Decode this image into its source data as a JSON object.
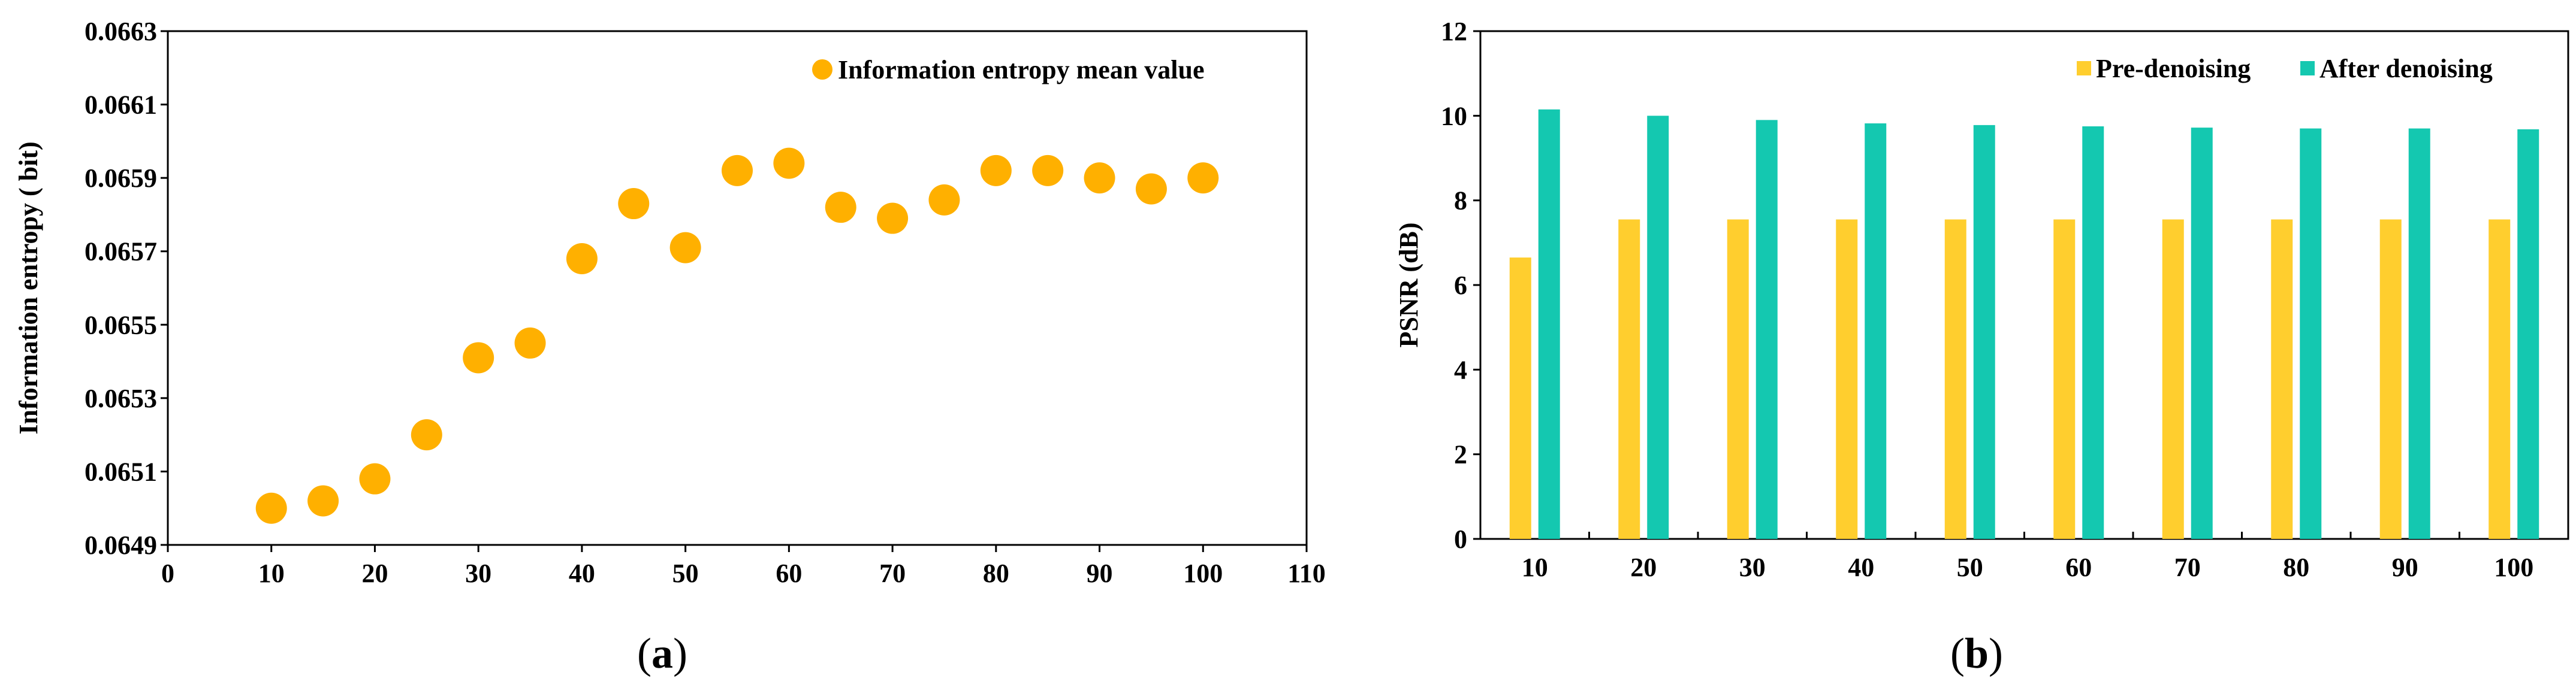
{
  "chart_data": [
    {
      "type": "scatter",
      "caption_label": "a",
      "title": "",
      "xlabel": "",
      "ylabel": "Information entropy ( bit)",
      "xlim": [
        0,
        110
      ],
      "ylim": [
        0.0649,
        0.0663
      ],
      "xticks": [
        "0",
        "10",
        "20",
        "30",
        "40",
        "50",
        "60",
        "70",
        "80",
        "90",
        "100",
        "110"
      ],
      "yticks": [
        "0.0649",
        "0.0651",
        "0.0653",
        "0.0655",
        "0.0657",
        "0.0659",
        "0.0661",
        "0.0663"
      ],
      "legend": "top-right",
      "color": "#FFB000",
      "series": [
        {
          "name": "Information entropy mean value",
          "x": [
            10,
            15,
            20,
            25,
            30,
            35,
            40,
            45,
            50,
            55,
            60,
            65,
            70,
            75,
            80,
            85,
            90,
            95,
            100
          ],
          "y": [
            0.065,
            0.06502,
            0.06508,
            0.0652,
            0.06541,
            0.06545,
            0.06568,
            0.06583,
            0.06571,
            0.06592,
            0.06594,
            0.06582,
            0.06579,
            0.06584,
            0.06592,
            0.06592,
            0.0659,
            0.06587,
            0.0659
          ]
        }
      ]
    },
    {
      "type": "bar",
      "caption_label": "b",
      "title": "",
      "xlabel": "",
      "ylabel": "PSNR (dB)",
      "ylim": [
        0,
        12
      ],
      "yticks": [
        "0",
        "2",
        "4",
        "6",
        "8",
        "10",
        "12"
      ],
      "categories": [
        "10",
        "20",
        "30",
        "40",
        "50",
        "60",
        "70",
        "80",
        "90",
        "100"
      ],
      "legend": "top-right",
      "series": [
        {
          "name": "Pre-denoising",
          "color": "#FFCE2E",
          "values": [
            6.65,
            7.55,
            7.55,
            7.55,
            7.55,
            7.55,
            7.55,
            7.55,
            7.55,
            7.55
          ]
        },
        {
          "name": "After denoising",
          "color": "#14C8B0",
          "values": [
            10.15,
            10.0,
            9.9,
            9.82,
            9.78,
            9.75,
            9.72,
            9.7,
            9.7,
            9.68
          ]
        }
      ]
    }
  ]
}
